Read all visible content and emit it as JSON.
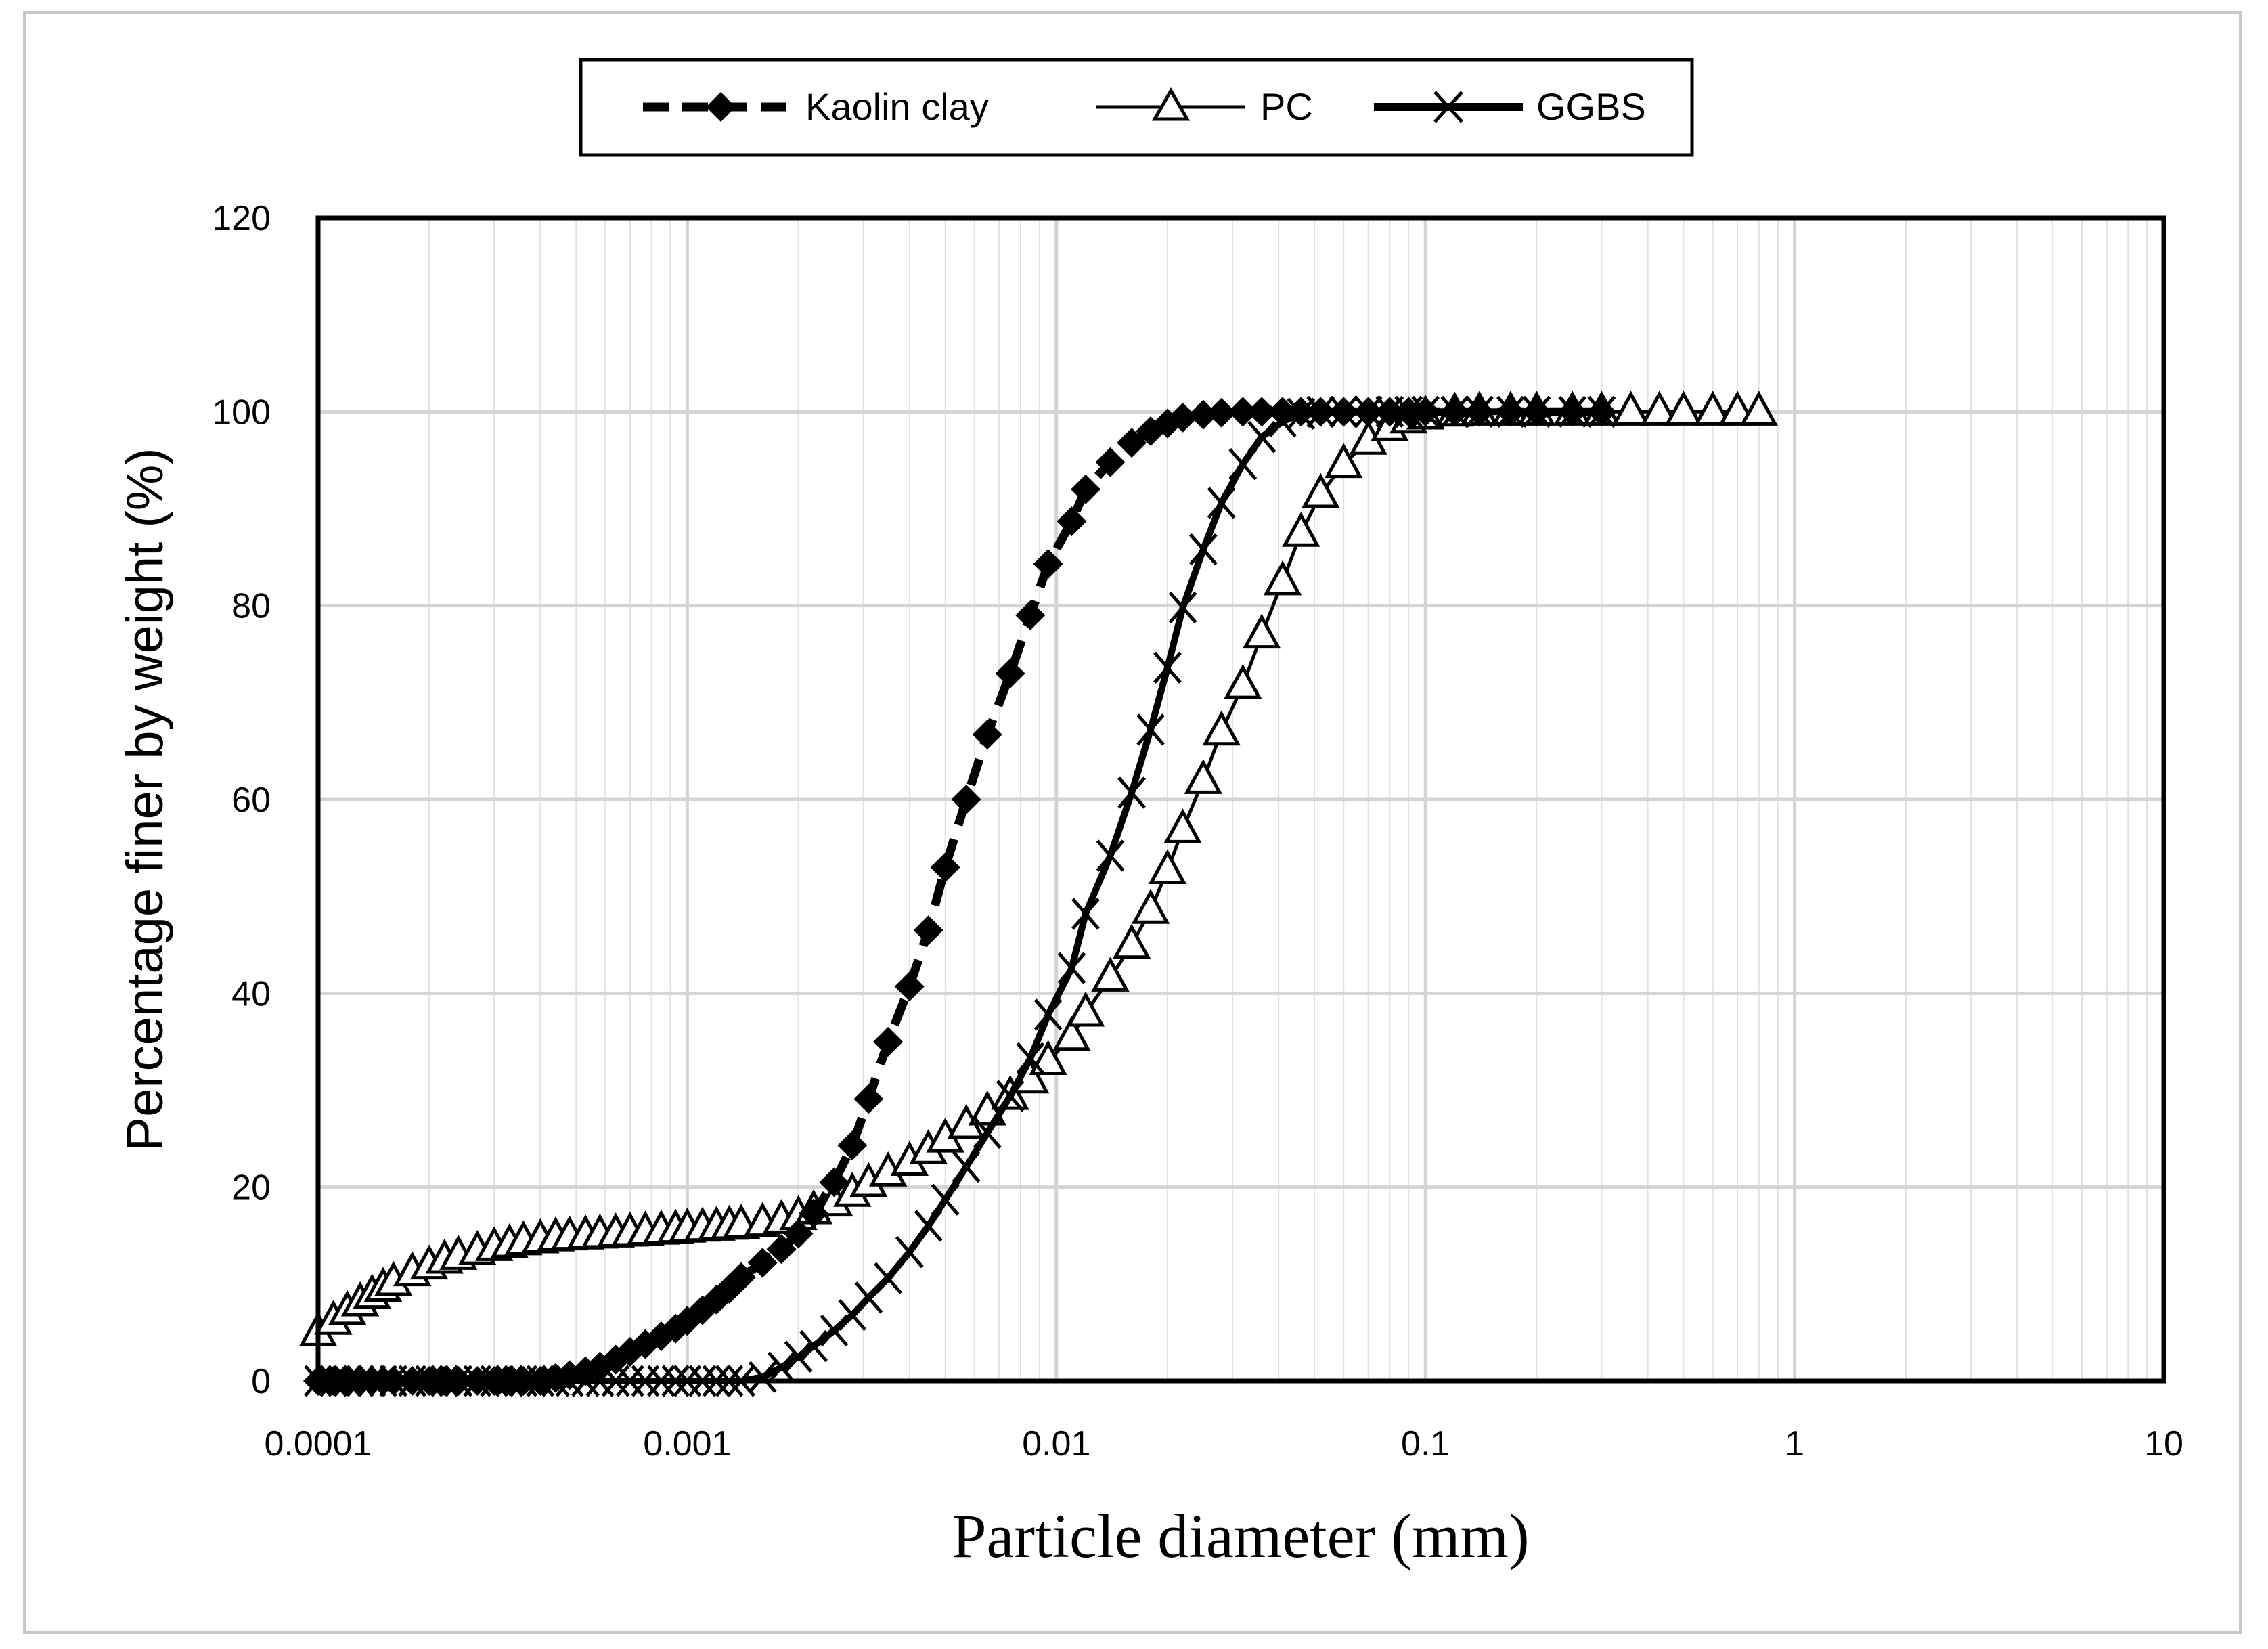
{
  "chart_data": {
    "type": "line",
    "title": "",
    "xlabel": "Particle diameter (mm)",
    "ylabel": "Percentage finer by weight (%)",
    "x_scale": "log",
    "xlim": [
      0.0001,
      10
    ],
    "ylim": [
      0,
      120
    ],
    "x_tick_labels": [
      "0.0001",
      "0.001",
      "0.01",
      "0.1",
      "1",
      "10"
    ],
    "y_tick_labels": [
      "0",
      "20",
      "40",
      "60",
      "80",
      "100",
      "120"
    ],
    "grid": true,
    "legend_position": "top-center",
    "series": [
      {
        "name": "Kaolin clay",
        "line_style": "dashed",
        "marker": "diamond",
        "x": [
          0.0001,
          0.00011,
          0.00012,
          0.00013,
          0.00014,
          0.00015,
          0.00016,
          0.00018,
          0.0002,
          0.00022,
          0.00024,
          0.00027,
          0.0003,
          0.00033,
          0.00036,
          0.0004,
          0.00044,
          0.00048,
          0.00053,
          0.00058,
          0.00064,
          0.0007,
          0.00077,
          0.00085,
          0.00093,
          0.001,
          0.0011,
          0.0012,
          0.0013,
          0.0014,
          0.0016,
          0.0018,
          0.002,
          0.0022,
          0.0025,
          0.0028,
          0.0031,
          0.0035,
          0.004,
          0.0045,
          0.005,
          0.0057,
          0.0065,
          0.0075,
          0.0085,
          0.0095,
          0.011,
          0.012,
          0.014,
          0.016,
          0.018,
          0.02,
          0.022,
          0.025,
          0.028,
          0.032,
          0.036,
          0.041,
          0.046,
          0.052,
          0.06,
          0.07,
          0.08,
          0.09,
          0.1,
          0.12,
          0.14,
          0.17,
          0.2,
          0.25,
          0.3
        ],
        "y": [
          0,
          0,
          0,
          0,
          0,
          0,
          0,
          0,
          0,
          0,
          0,
          0,
          0,
          0,
          0,
          0,
          0.3,
          0.6,
          1,
          1.5,
          2.2,
          3,
          3.8,
          4.6,
          5.4,
          6.2,
          7.3,
          8.4,
          9.5,
          10.7,
          12.2,
          13.6,
          15.2,
          17.3,
          20.5,
          24.3,
          29.1,
          35,
          40.7,
          46.5,
          53,
          60,
          66.7,
          73,
          79,
          84.3,
          88.7,
          92,
          94.8,
          96.8,
          98,
          98.8,
          99.4,
          99.7,
          99.9,
          100,
          100,
          100,
          100,
          100,
          100,
          100,
          100,
          100,
          100,
          100,
          100,
          100,
          100,
          100,
          100
        ]
      },
      {
        "name": "PC",
        "line_style": "solid",
        "marker": "triangle",
        "x": [
          0.0001,
          0.00011,
          0.00012,
          0.00013,
          0.00014,
          0.00015,
          0.00016,
          0.00018,
          0.0002,
          0.00022,
          0.00024,
          0.00027,
          0.0003,
          0.00033,
          0.00036,
          0.0004,
          0.00044,
          0.00048,
          0.00053,
          0.00058,
          0.00064,
          0.0007,
          0.00077,
          0.00085,
          0.00093,
          0.001,
          0.0011,
          0.0012,
          0.0013,
          0.0014,
          0.0016,
          0.0018,
          0.002,
          0.0022,
          0.0025,
          0.0028,
          0.0031,
          0.0035,
          0.004,
          0.0045,
          0.005,
          0.0057,
          0.0065,
          0.0075,
          0.0085,
          0.0095,
          0.011,
          0.012,
          0.014,
          0.016,
          0.018,
          0.02,
          0.022,
          0.025,
          0.028,
          0.032,
          0.036,
          0.041,
          0.046,
          0.052,
          0.06,
          0.07,
          0.08,
          0.09,
          0.1,
          0.12,
          0.14,
          0.17,
          0.2,
          0.25,
          0.3,
          0.36,
          0.43,
          0.5,
          0.6,
          0.7,
          0.8
        ],
        "y": [
          5,
          6.2,
          7.2,
          8.1,
          8.9,
          9.6,
          10.2,
          11.2,
          11.9,
          12.5,
          12.9,
          13.4,
          13.8,
          14.1,
          14.4,
          14.6,
          14.8,
          14.9,
          15,
          15.1,
          15.2,
          15.3,
          15.4,
          15.5,
          15.6,
          15.7,
          15.8,
          15.9,
          16,
          16.1,
          16.3,
          16.6,
          17,
          17.6,
          18.4,
          19.4,
          20.4,
          21.5,
          22.6,
          23.8,
          25,
          26.4,
          27.8,
          29.4,
          31.1,
          33,
          35.5,
          38,
          41.6,
          45,
          48.6,
          52.7,
          56.9,
          62,
          67,
          71.8,
          77,
          82.5,
          87.5,
          91.5,
          94.6,
          97,
          98.4,
          99.2,
          99.6,
          99.9,
          100,
          100,
          100,
          100,
          100,
          100,
          100,
          100,
          100,
          100,
          100
        ]
      },
      {
        "name": "GGBS",
        "line_style": "solid",
        "marker": "x",
        "x": [
          0.0001,
          0.00011,
          0.00012,
          0.00013,
          0.00014,
          0.00015,
          0.00016,
          0.00018,
          0.0002,
          0.00022,
          0.00024,
          0.00027,
          0.0003,
          0.00033,
          0.00036,
          0.0004,
          0.00044,
          0.00048,
          0.00053,
          0.00058,
          0.00064,
          0.0007,
          0.00077,
          0.00085,
          0.00093,
          0.001,
          0.0011,
          0.0012,
          0.0013,
          0.0014,
          0.0016,
          0.0018,
          0.002,
          0.0022,
          0.0025,
          0.0028,
          0.0031,
          0.0035,
          0.004,
          0.0045,
          0.005,
          0.0057,
          0.0065,
          0.0075,
          0.0085,
          0.0095,
          0.011,
          0.012,
          0.014,
          0.016,
          0.018,
          0.02,
          0.022,
          0.025,
          0.028,
          0.032,
          0.036,
          0.041,
          0.046,
          0.052,
          0.06,
          0.07,
          0.08,
          0.09,
          0.1,
          0.12,
          0.14,
          0.17,
          0.2,
          0.25,
          0.3
        ],
        "y": [
          0,
          0,
          0,
          0,
          0,
          0,
          0,
          0,
          0,
          0,
          0,
          0,
          0,
          0,
          0,
          0,
          0,
          0,
          0,
          0,
          0,
          0,
          0,
          0,
          0,
          0,
          0,
          0,
          0,
          0,
          0.4,
          1.4,
          2.5,
          3.6,
          5.2,
          6.8,
          8.6,
          10.6,
          13.3,
          16,
          18.7,
          22.1,
          25.6,
          29.4,
          33.3,
          37.8,
          42.6,
          48.2,
          54.2,
          60.7,
          67.2,
          73.6,
          79.8,
          85.8,
          90.6,
          94.6,
          97.4,
          99,
          99.8,
          100,
          100,
          100,
          100,
          100,
          100,
          100,
          100,
          100,
          100,
          100,
          100
        ]
      }
    ]
  }
}
